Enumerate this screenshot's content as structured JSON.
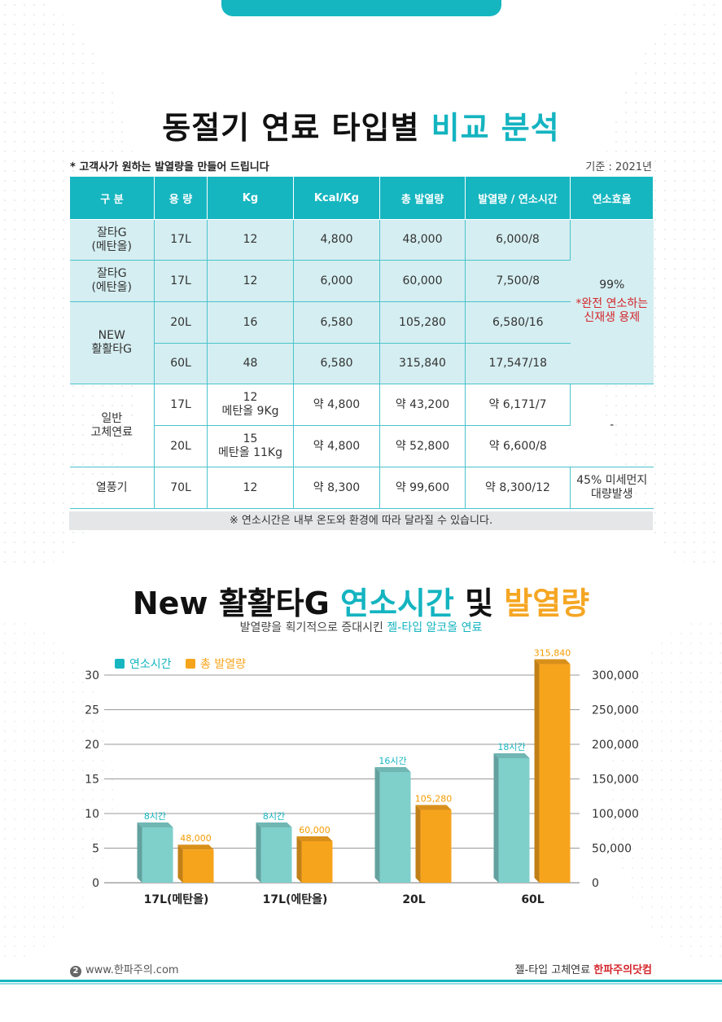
{
  "title1": {
    "main": "동절기 연료 타입별 ",
    "accent": "비교 분석"
  },
  "note_left": "* 고객사가 원하는 발열량을 만들어 드립니다",
  "note_right": "기준 : 2021년",
  "table": {
    "headers": [
      "구  분",
      "용  량",
      "Kg",
      "Kcal/Kg",
      "총 발열량",
      "발열량 / 연소시간",
      "연소효율"
    ],
    "rows": [
      {
        "name": "잘타G\n(메탄올)",
        "cap": "17L",
        "kg": "12",
        "kcal": "4,800",
        "total": "48,000",
        "rate": "6,000/8"
      },
      {
        "name": "잘타G\n(에탄올)",
        "cap": "17L",
        "kg": "12",
        "kcal": "6,000",
        "total": "60,000",
        "rate": "7,500/8"
      },
      {
        "name": "NEW\n활활타G",
        "cap": "20L",
        "kg": "16",
        "kcal": "6,580",
        "total": "105,280",
        "rate": "6,580/16"
      },
      {
        "cap": "60L",
        "kg": "48",
        "kcal": "6,580",
        "total": "315,840",
        "rate": "17,547/18"
      },
      {
        "name": "일반\n고체연료",
        "cap": "17L",
        "kg": "12\n메탄올 9Kg",
        "kcal": "약 4,800",
        "total": "약 43,200",
        "rate": "약 6,171/7"
      },
      {
        "cap": "20L",
        "kg": "15\n메탄올 11Kg",
        "kcal": "약 4,800",
        "total": "약 52,800",
        "rate": "약 6,600/8"
      },
      {
        "name": "열풍기",
        "cap": "70L",
        "kg": "12",
        "kcal": "약 8,300",
        "total": "약 99,600",
        "rate": "약 8,300/12"
      }
    ],
    "efficiency_1": "99%",
    "efficiency_1_note": "*완전 연소하는\n신재생 용제",
    "efficiency_2": "-",
    "efficiency_3": "45% 미세먼지\n대량발생"
  },
  "footnote": "※ 연소시간은 내부 온도와 환경에 따라 달라질 수 있습니다.",
  "title2": {
    "p1": "New 활활타G ",
    "p2": "연소시간",
    "p3": " 및 ",
    "p4": "발열량"
  },
  "subtitle2": {
    "main": "발열량을 획기적으로 증대시킨 ",
    "hl": "젤-타입 알코올 연료"
  },
  "chart_data": {
    "type": "bar",
    "categories": [
      "17L(메탄올)",
      "17L(에탄올)",
      "20L",
      "60L"
    ],
    "series": [
      {
        "name": "연소시간",
        "values": [
          8,
          8,
          16,
          18
        ],
        "labels": [
          "8시간",
          "8시간",
          "16시간",
          "18시간"
        ],
        "color": "#7fcfcb",
        "axis": "left"
      },
      {
        "name": "총 발열량",
        "values": [
          48000,
          60000,
          105280,
          315840
        ],
        "labels": [
          "48,000",
          "60,000",
          "105,280",
          "315,840"
        ],
        "color": "#f7a41d",
        "axis": "right"
      }
    ],
    "y_left": {
      "range": [
        0,
        30
      ],
      "ticks": [
        "0",
        "5",
        "10",
        "15",
        "20",
        "25",
        "30"
      ]
    },
    "y_right": {
      "range": [
        0,
        300000
      ],
      "ticks": [
        "0",
        "50,000",
        "100,000",
        "150,000",
        "200,000",
        "250,000",
        "300,000"
      ]
    },
    "grid": true,
    "legend": "top-left"
  },
  "footer": {
    "page": "2",
    "url": "www.한파주의.com",
    "right_text": "젤-타입 고체연료 ",
    "brand": "한파주의닷컴"
  },
  "colors": {
    "accent": "#16b6c0",
    "orange": "#f7a41d",
    "red": "#d4262c"
  }
}
